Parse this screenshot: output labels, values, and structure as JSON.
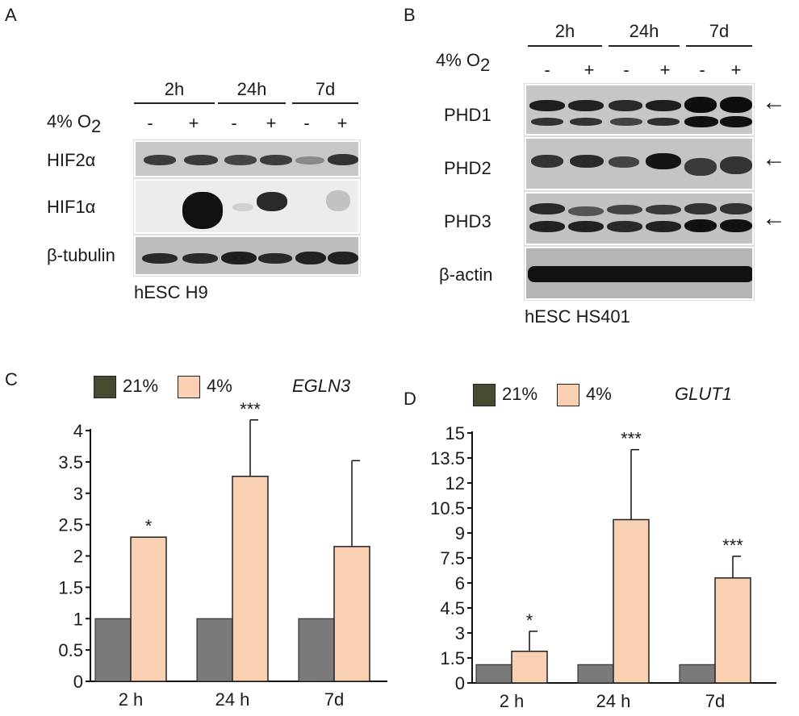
{
  "panelA": {
    "letter": "A",
    "condition_label": "4% O",
    "condition_sub": "2",
    "timepoints": [
      "2h",
      "24h",
      "7d"
    ],
    "signs": [
      "-",
      "+",
      "-",
      "+",
      "-",
      "+"
    ],
    "blots": [
      "HIF2α",
      "HIF1α",
      "β-tubulin"
    ],
    "cell_line": "hESC H9"
  },
  "panelB": {
    "letter": "B",
    "condition_label": "4% O",
    "condition_sub": "2",
    "timepoints": [
      "2h",
      "24h",
      "7d"
    ],
    "signs": [
      "-",
      "+",
      "-",
      "+",
      "-",
      "+"
    ],
    "blots": [
      "PHD1",
      "PHD2",
      "PHD3",
      "β-actin"
    ],
    "cell_line": "hESC HS401",
    "arrow_glyph": "←"
  },
  "panelC": {
    "letter": "C"
  },
  "panelD": {
    "letter": "D"
  },
  "colors": {
    "dark": "#7a7a7a",
    "light": "#fad0b2",
    "legend_dark": "#464a2e"
  },
  "chart_data": [
    {
      "type": "bar",
      "gene": "EGLN3",
      "categories": [
        "2 h",
        "24 h",
        "7d"
      ],
      "legend": [
        "21%",
        "4%"
      ],
      "series": [
        {
          "name": "21%",
          "values": [
            1,
            1,
            1
          ],
          "errors": [
            0,
            0,
            0
          ]
        },
        {
          "name": "4%",
          "values": [
            2.3,
            3.27,
            2.15
          ],
          "errors": [
            0,
            0.9,
            1.37
          ]
        }
      ],
      "significance": [
        "*",
        "***",
        ""
      ],
      "ylim": [
        0,
        4
      ],
      "yticks": [
        "0",
        "0.5",
        "1",
        "1.5",
        "2",
        "2.5",
        "3",
        "3.5",
        "4"
      ],
      "ytick_values": [
        0,
        0.5,
        1,
        1.5,
        2,
        2.5,
        3,
        3.5,
        4
      ]
    },
    {
      "type": "bar",
      "gene": "GLUT1",
      "categories": [
        "2 h",
        "24 h",
        "7d"
      ],
      "legend": [
        "21%",
        "4%"
      ],
      "series": [
        {
          "name": "21%",
          "values": [
            1.1,
            1.1,
            1.1
          ],
          "errors": [
            0,
            0,
            0
          ]
        },
        {
          "name": "4%",
          "values": [
            1.9,
            9.8,
            6.3
          ],
          "errors": [
            1.2,
            4.2,
            1.3
          ]
        }
      ],
      "significance": [
        "*",
        "***",
        "***"
      ],
      "ylim": [
        0,
        15
      ],
      "yticks": [
        "0",
        "1.5",
        "3",
        "4.5",
        "6",
        "7.5",
        "9",
        "10.5",
        "12",
        "13.5",
        "15"
      ],
      "ytick_values": [
        0,
        1.5,
        3,
        4.5,
        6,
        7.5,
        9,
        10.5,
        12,
        13.5,
        15
      ]
    }
  ]
}
